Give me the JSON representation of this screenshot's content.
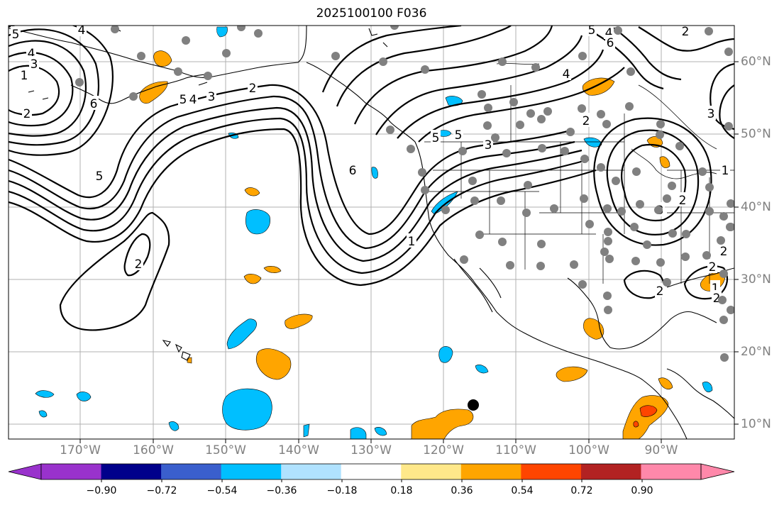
{
  "title": "2025100100 F036",
  "lon_labels": [
    "170°W",
    "160°W",
    "150°W",
    "140°W",
    "130°W",
    "120°W",
    "110°W",
    "100°W",
    "90°W"
  ],
  "lat_labels": [
    "60°N",
    "50°N",
    "40°N",
    "30°N",
    "20°N",
    "10°N"
  ],
  "colorbar": {
    "ticks": [
      "−0.90",
      "−0.72",
      "−0.54",
      "−0.36",
      "−0.18",
      "0.18",
      "0.36",
      "0.54",
      "0.72",
      "0.90"
    ],
    "colors": [
      "#9932cc",
      "#00008b",
      "#3a5fcd",
      "#00bfff",
      "#b0e2ff",
      "#ffffff",
      "#ffe88a",
      "#ffa500",
      "#ff4500",
      "#b22222",
      "#ff88aa"
    ]
  },
  "contour_labels": [
    "5",
    "4",
    "4",
    "3",
    "1",
    "2",
    "6",
    "5",
    "5",
    "4",
    "3",
    "2",
    "6",
    "2",
    "5",
    "4",
    "5",
    "4",
    "3",
    "2",
    "1",
    "6",
    "5",
    "3",
    "2",
    "3",
    "2",
    "2",
    "2",
    "1",
    "2",
    "1",
    "2"
  ],
  "colors": {
    "contour": "#000000",
    "station": "#808080",
    "grid": "#b0b0b0",
    "coast": "#000000",
    "blue_fill": "#00bfff",
    "orange_fill": "#ffa500",
    "redorange_fill": "#ff4500",
    "marker": "#000000"
  }
}
